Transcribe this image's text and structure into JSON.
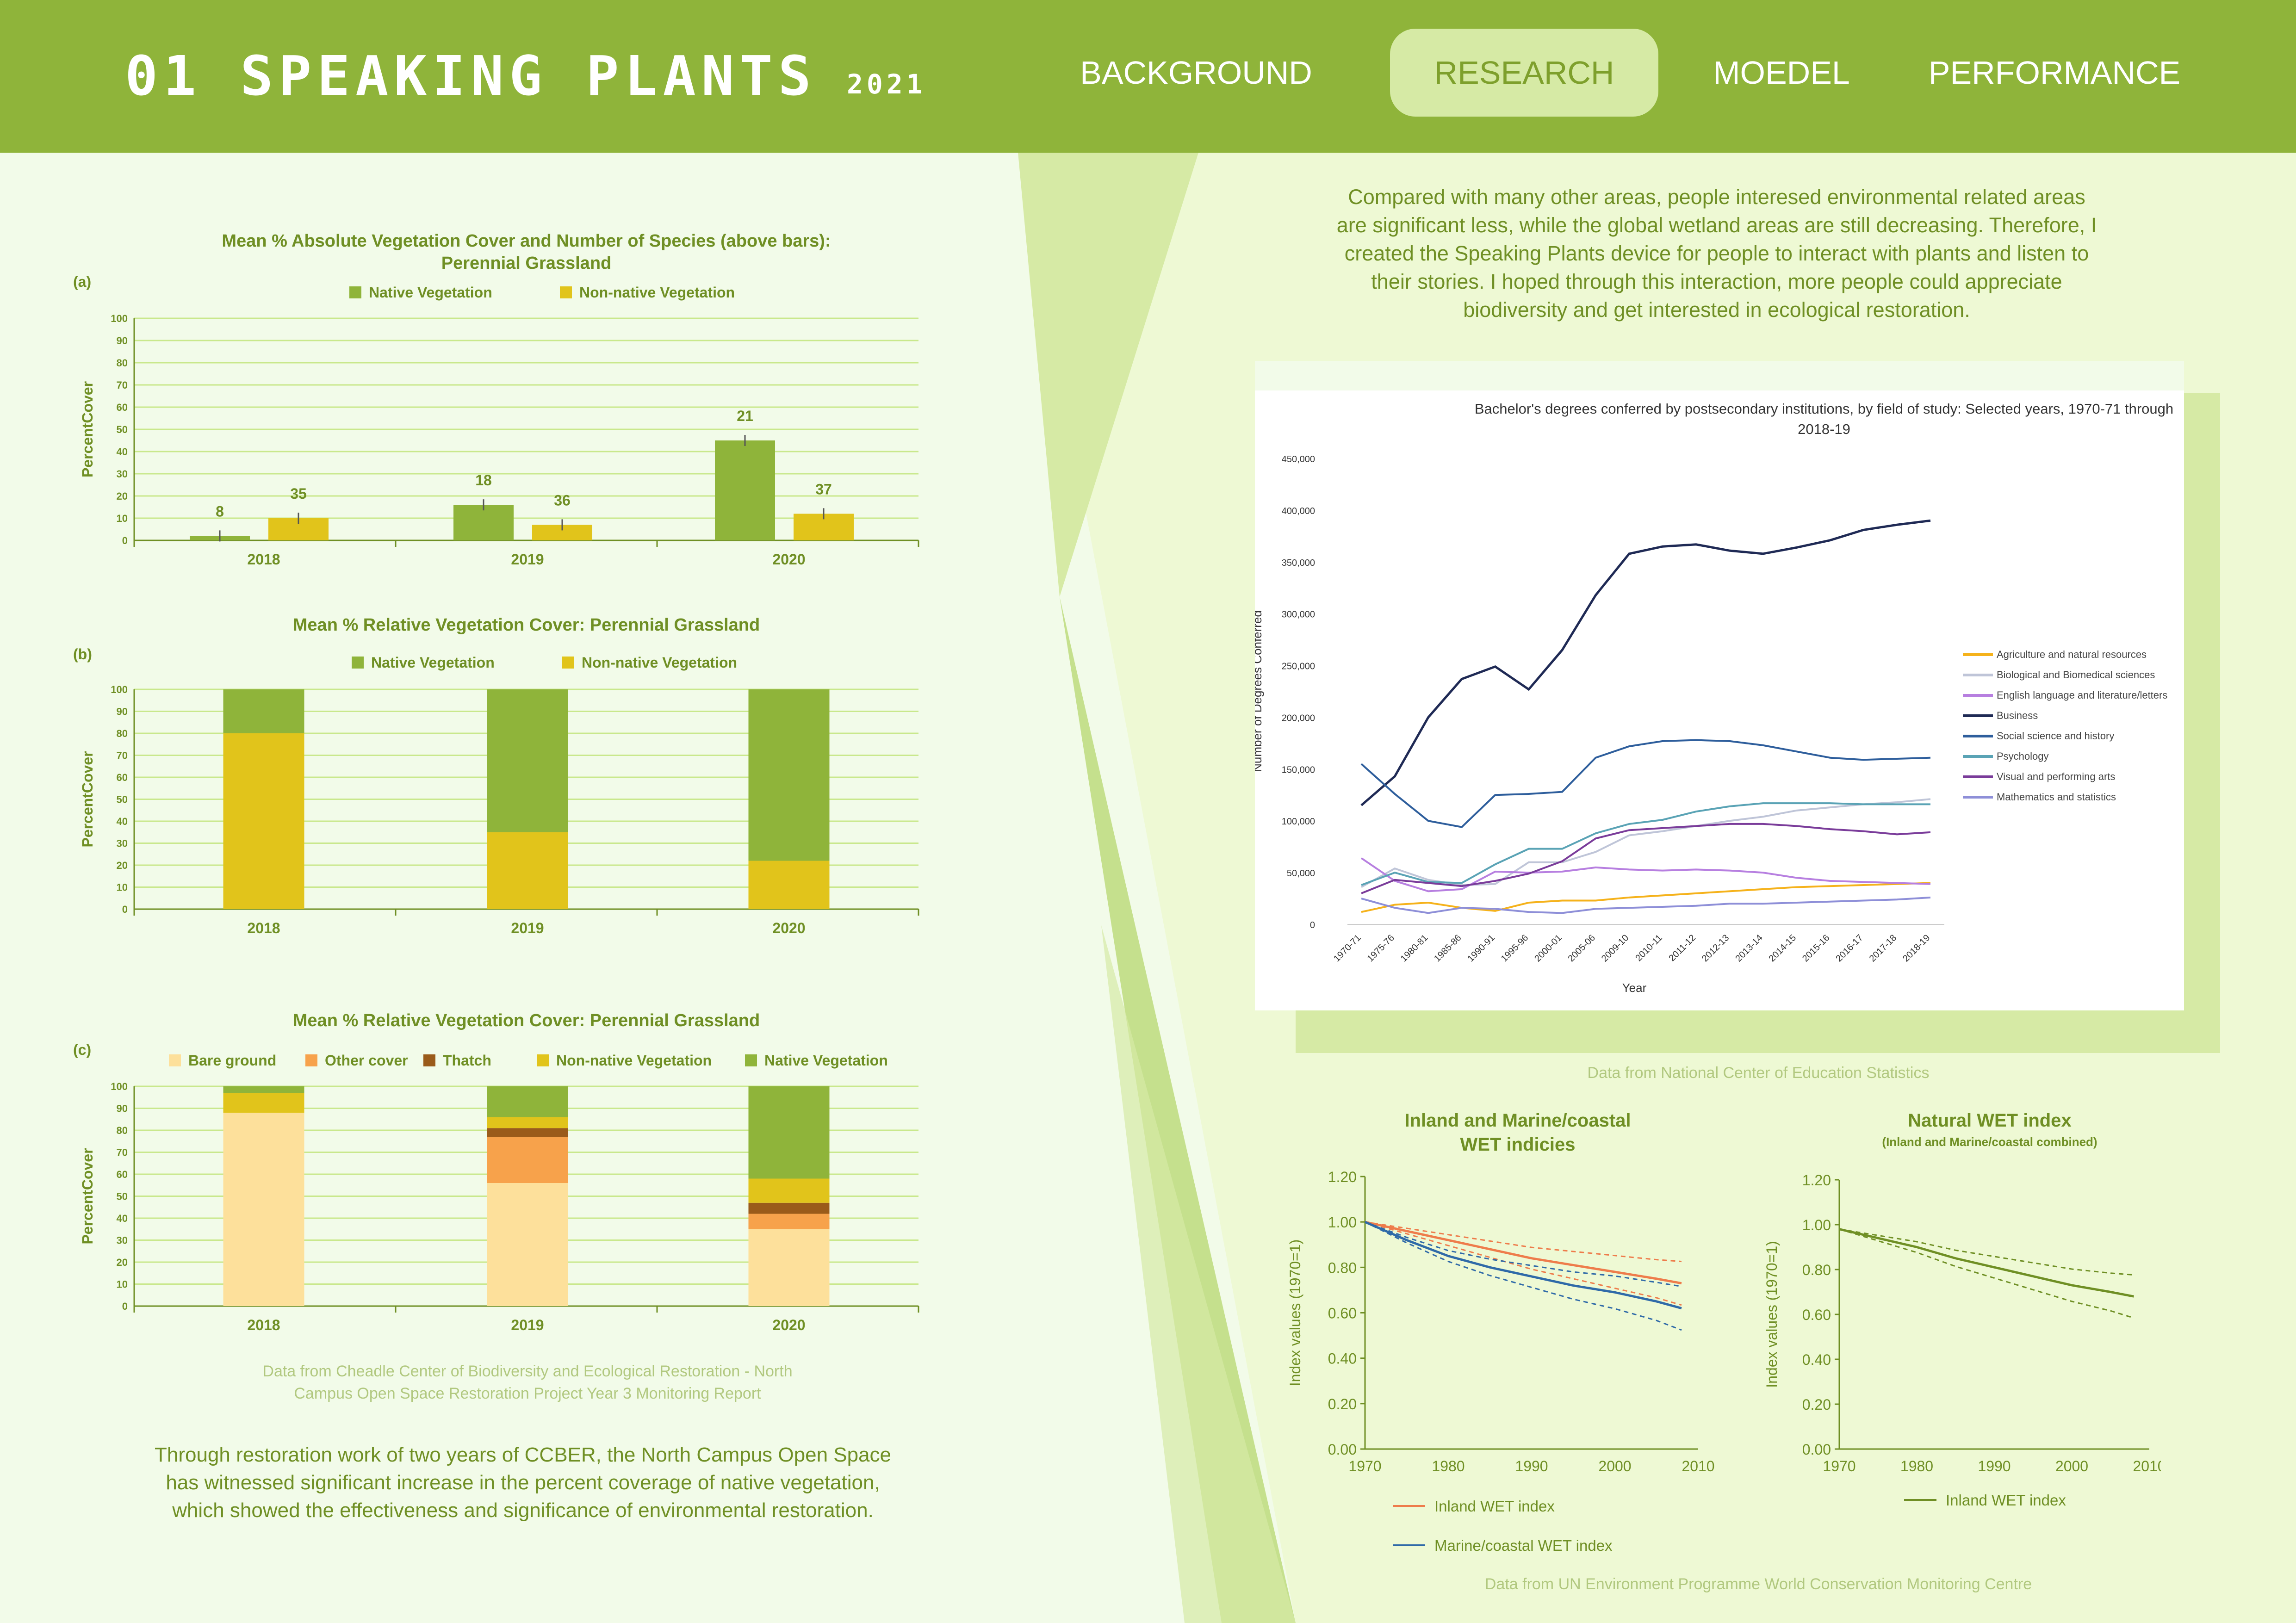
{
  "header": {
    "title": "01 SPEAKING PLANTS",
    "year": "2021",
    "nav": [
      {
        "label": "BACKGROUND",
        "active": false
      },
      {
        "label": "RESEARCH",
        "active": true
      },
      {
        "label": "MOEDEL",
        "active": false
      },
      {
        "label": "PERFORMANCE",
        "active": false
      }
    ]
  },
  "left": {
    "source": [
      "Data from Cheadle Center of Biodiversity and Ecological Restoration - North",
      "Campus Open Space Restoration Project Year 3 Monitoring Report"
    ],
    "conclusion": [
      "Through restoration work of two years of CCBER, the North Campus Open Space",
      "has witnessed significant increase in the percent coverage of native vegetation,",
      "which showed the effectiveness and significance of environmental restoration."
    ]
  },
  "right": {
    "intro": [
      "Compared with many other areas, people interesed environmental related areas",
      "are significant less, while the global wetland areas are still decreasing. Therefore, I",
      "created the Speaking Plants device for people to interact with plants and listen to",
      "their stories. I hoped through this interaction, more people could appreciate",
      "biodiversity and get interested in ecological restoration."
    ],
    "edu_source": "Data from National Center of Education Statistics",
    "wet_source": "Data from UN Environment Programme World Conservation Monitoring Centre"
  },
  "colors": {
    "native": "#8fb43a",
    "nonnative": "#e1c41b",
    "bare": "#fde09b",
    "other": "#f7a24b",
    "thatch": "#9a5b1a",
    "grid": "#c9e88c",
    "text": "#6f8f24",
    "inland": "#ee7c4b",
    "marine": "#2f6aa8",
    "natural": "#6f8f24"
  },
  "chart_data": [
    {
      "type": "bar",
      "panel": "(a)",
      "title": [
        "Mean % Absolute Vegetation Cover and Number of Species (above bars):",
        "Perennial Grassland"
      ],
      "categories": [
        "2018",
        "2019",
        "2020"
      ],
      "ylabel": "PercentCover",
      "ylim": [
        0,
        100
      ],
      "yticks": [
        0,
        10,
        20,
        30,
        40,
        50,
        60,
        70,
        80,
        90,
        100
      ],
      "series": [
        {
          "name": "Native Vegetation",
          "values": [
            2,
            16,
            45
          ],
          "species_labels": [
            "8",
            "18",
            "21"
          ]
        },
        {
          "name": "Non-native Vegetation",
          "values": [
            10,
            7,
            12
          ],
          "species_labels": [
            "35",
            "36",
            "37"
          ]
        }
      ]
    },
    {
      "type": "bar",
      "panel": "(b)",
      "stacked": true,
      "title": [
        "Mean % Relative Vegetation Cover: Perennial Grassland"
      ],
      "categories": [
        "2018",
        "2019",
        "2020"
      ],
      "ylabel": "PercentCover",
      "ylim": [
        0,
        100
      ],
      "yticks": [
        0,
        10,
        20,
        30,
        40,
        50,
        60,
        70,
        80,
        90,
        100
      ],
      "series": [
        {
          "name": "Non-native Vegetation",
          "values": [
            80,
            35,
            22
          ]
        },
        {
          "name": "Native Vegetation",
          "values": [
            20,
            65,
            78
          ]
        }
      ],
      "legend": [
        "Native Vegetation",
        "Non-native Vegetation"
      ]
    },
    {
      "type": "bar",
      "panel": "(c)",
      "stacked": true,
      "title": [
        "Mean % Relative Vegetation Cover: Perennial Grassland"
      ],
      "categories": [
        "2018",
        "2019",
        "2020"
      ],
      "ylabel": "PercentCover",
      "ylim": [
        0,
        100
      ],
      "yticks": [
        0,
        10,
        20,
        30,
        40,
        50,
        60,
        70,
        80,
        90,
        100
      ],
      "series": [
        {
          "name": "Bare ground",
          "values": [
            88,
            56,
            35
          ]
        },
        {
          "name": "Other cover",
          "values": [
            0,
            21,
            7
          ]
        },
        {
          "name": "Thatch",
          "values": [
            0,
            4,
            5
          ]
        },
        {
          "name": "Non-native Vegetation",
          "values": [
            9,
            5,
            11
          ]
        },
        {
          "name": "Native Vegetation",
          "values": [
            3,
            14,
            42
          ]
        }
      ]
    },
    {
      "type": "line",
      "title": [
        "Bachelor's degrees conferred by postsecondary institutions, by field of study: Selected years, 1970-71 through",
        "2018-19"
      ],
      "xlabel": "Year",
      "ylabel": "Number of Degrees Conferred",
      "x": [
        "1970-71",
        "1975-76",
        "1980-81",
        "1985-86",
        "1990-91",
        "1995-96",
        "2000-01",
        "2005-06",
        "2009-10",
        "2010-11",
        "2011-12",
        "2012-13",
        "2013-14",
        "2014-15",
        "2015-16",
        "2016-17",
        "2017-18",
        "2018-19"
      ],
      "ylim": [
        0,
        450000
      ],
      "yticks": [
        "0",
        "50,000",
        "100,000",
        "150,000",
        "200,000",
        "250,000",
        "300,000",
        "350,000",
        "400,000",
        "450,000"
      ],
      "series": [
        {
          "name": "Agriculture and natural resources",
          "color": "#f5b21b",
          "values": [
            12000,
            19000,
            21000,
            16000,
            13000,
            21000,
            23000,
            23000,
            26000,
            28000,
            30000,
            32000,
            34000,
            36000,
            37000,
            38000,
            39000,
            40000
          ]
        },
        {
          "name": "Biological and Biomedical sciences",
          "color": "#bfc5d8",
          "values": [
            36000,
            54000,
            43000,
            38000,
            39000,
            60000,
            60000,
            70000,
            86000,
            90000,
            95000,
            100000,
            104000,
            110000,
            113000,
            116000,
            118000,
            121000
          ]
        },
        {
          "name": "English language and literature/letters",
          "color": "#b77fe0",
          "values": [
            64000,
            42000,
            32000,
            34000,
            51000,
            50000,
            51000,
            55000,
            53000,
            52000,
            53000,
            52000,
            50000,
            45000,
            42000,
            41000,
            40000,
            39000
          ]
        },
        {
          "name": "Business",
          "color": "#1f2a55",
          "values": [
            115000,
            143000,
            200000,
            237000,
            249000,
            227000,
            265000,
            318000,
            358000,
            365000,
            367000,
            361000,
            358000,
            364000,
            371000,
            381000,
            386000,
            390000
          ]
        },
        {
          "name": "Social science and history",
          "color": "#2e5e9c",
          "values": [
            155000,
            126000,
            100000,
            94000,
            125000,
            126000,
            128000,
            161000,
            172000,
            177000,
            178000,
            177000,
            173000,
            167000,
            161000,
            159000,
            160000,
            161000
          ]
        },
        {
          "name": "Psychology",
          "color": "#5aa3b5",
          "values": [
            38000,
            50000,
            41000,
            40000,
            58000,
            73000,
            73000,
            88000,
            97000,
            101000,
            109000,
            114000,
            117000,
            117000,
            117000,
            116000,
            116000,
            116000
          ]
        },
        {
          "name": "Visual and performing arts",
          "color": "#7a3c9a",
          "values": [
            30000,
            43000,
            40000,
            37000,
            42000,
            49000,
            61000,
            83000,
            91000,
            93000,
            95000,
            97000,
            97000,
            95000,
            92000,
            90000,
            87000,
            89000
          ]
        },
        {
          "name": "Mathematics and statistics",
          "color": "#8e8fd8",
          "values": [
            25000,
            16000,
            11000,
            16000,
            15000,
            12000,
            11000,
            15000,
            16000,
            17000,
            18000,
            20000,
            20000,
            21000,
            22000,
            23000,
            24000,
            26000
          ]
        }
      ]
    },
    {
      "type": "line",
      "title": [
        "Inland and Marine/coastal",
        "WET indicies"
      ],
      "xlabel": "",
      "ylabel": "Index values (1970=1)",
      "xlim": [
        1970,
        2010
      ],
      "xticks": [
        1970,
        1980,
        1990,
        2000,
        2010
      ],
      "ylim": [
        0,
        1.2
      ],
      "yticks": [
        "0.00",
        "0.20",
        "0.40",
        "0.60",
        "0.80",
        "1.00",
        "1.20"
      ],
      "x": [
        1970,
        1975,
        1980,
        1985,
        1990,
        1995,
        2000,
        2005,
        2008
      ],
      "series": [
        {
          "name": "Inland WET index",
          "color": "#ee7c4b",
          "values": [
            1.0,
            0.96,
            0.92,
            0.88,
            0.84,
            0.81,
            0.78,
            0.75,
            0.73
          ]
        },
        {
          "name": "Marine/coastal WET index",
          "color": "#2f6aa8",
          "values": [
            1.0,
            0.92,
            0.85,
            0.8,
            0.76,
            0.72,
            0.69,
            0.65,
            0.62
          ]
        }
      ]
    },
    {
      "type": "line",
      "title": [
        "Natural WET index",
        "(Inland and Marine/coastal combined)"
      ],
      "xlabel": "",
      "ylabel": "Index values (1970=1)",
      "xlim": [
        1970,
        2010
      ],
      "xticks": [
        1970,
        1980,
        1990,
        2000,
        2010
      ],
      "ylim": [
        0,
        1.2
      ],
      "yticks": [
        "0.00",
        "0.20",
        "0.40",
        "0.60",
        "0.80",
        "1.00",
        "1.20"
      ],
      "x": [
        1970,
        1975,
        1980,
        1985,
        1990,
        1995,
        2000,
        2005,
        2008
      ],
      "series": [
        {
          "name": "Inland WET index",
          "color": "#6f8f24",
          "values": [
            0.98,
            0.94,
            0.9,
            0.85,
            0.81,
            0.77,
            0.73,
            0.7,
            0.68
          ]
        }
      ]
    }
  ]
}
